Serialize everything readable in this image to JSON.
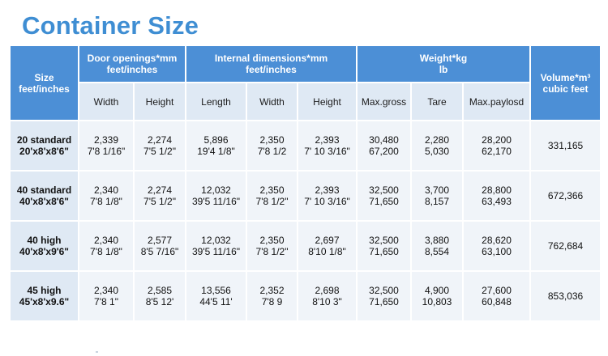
{
  "title": "Container Size",
  "headers": {
    "size": [
      "Size",
      "feet/inches"
    ],
    "door": [
      "Door openings*mm",
      "feet/inches"
    ],
    "internal": [
      "Internal dimensions*mm",
      "feet/inches"
    ],
    "weight": [
      "Weight*kg",
      "lb"
    ],
    "volume": [
      "Volume*m³",
      "cubic feet"
    ]
  },
  "subheaders": [
    "Width",
    "Height",
    "Length",
    "Width",
    "Height",
    "Max.gross",
    "Tare",
    "Max.paylosd"
  ],
  "rows": [
    {
      "size": [
        "20 standard",
        "20'x8'x8'6\""
      ],
      "cells": [
        [
          "2,339",
          "7'8 1/16\""
        ],
        [
          "2,274",
          "7'5 1/2\""
        ],
        [
          "5,896",
          "19'4 1/8\""
        ],
        [
          "2,350",
          "7'8 1/2"
        ],
        [
          "2,393",
          "7' 10 3/16\""
        ],
        [
          "30,480",
          "67,200"
        ],
        [
          "2,280",
          "5,030"
        ],
        [
          "28,200",
          "62,170"
        ]
      ],
      "volume": "331,165"
    },
    {
      "size": [
        "40 standard",
        "40'x8'x8'6\""
      ],
      "cells": [
        [
          "2,340",
          "7'8 1/8\""
        ],
        [
          "2,274",
          "7'5 1/2\""
        ],
        [
          "12,032",
          "39'5 11/16\""
        ],
        [
          "2,350",
          "7'8 1/2\""
        ],
        [
          "2,393",
          "7' 10 3/16\""
        ],
        [
          "32,500",
          "71,650"
        ],
        [
          "3,700",
          "8,157"
        ],
        [
          "28,800",
          "63,493"
        ]
      ],
      "volume": "672,366"
    },
    {
      "size": [
        "40 high",
        "40'x8'x9'6\""
      ],
      "cells": [
        [
          "2,340",
          "7'8 1/8\""
        ],
        [
          "2,577",
          "8'5 7/16\""
        ],
        [
          "12,032",
          "39'5 11/16\""
        ],
        [
          "2,350",
          "7'8 1/2\""
        ],
        [
          "2,697",
          "8'10 1/8\""
        ],
        [
          "32,500",
          "71,650"
        ],
        [
          "3,880",
          "8,554"
        ],
        [
          "28,620",
          "63,100"
        ]
      ],
      "volume": "762,684"
    },
    {
      "size": [
        "45 high",
        "45'x8'x9.6\""
      ],
      "cells": [
        [
          "2,340",
          "7'8 1\""
        ],
        [
          "2,585",
          "8'5 12'"
        ],
        [
          "13,556",
          "44'5 11'"
        ],
        [
          "2,352",
          "7'8 9"
        ],
        [
          "2,698",
          "8'10 3\""
        ],
        [
          "32,500",
          "71,650"
        ],
        [
          "4,900",
          "10,803"
        ],
        [
          "27,600",
          "60,848"
        ]
      ],
      "volume": "853,036"
    }
  ],
  "colors": {
    "title": "#3f8ed3",
    "header": "#4c8fd6",
    "row_dark": "#dfe9f4",
    "row_light": "#f0f4f9"
  }
}
